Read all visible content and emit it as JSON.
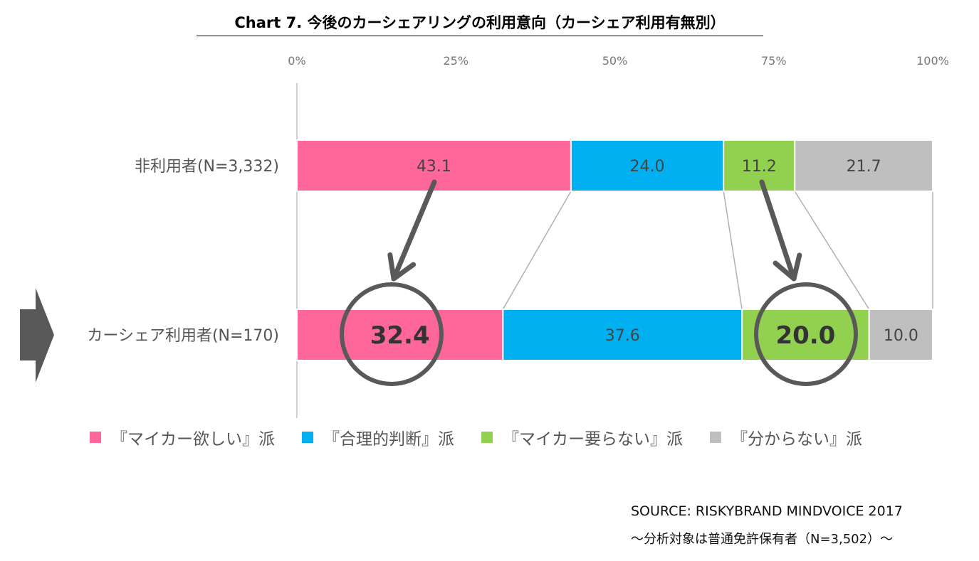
{
  "title": "Chart 7. 今後のカーシェアリングの利用意向（カーシェア利用有無別）",
  "chart_data": {
    "type": "bar",
    "stacked": true,
    "orientation": "horizontal",
    "percent": true,
    "xlim": [
      0,
      100
    ],
    "x_ticks": [
      "0%",
      "25%",
      "50%",
      "75%",
      "100%"
    ],
    "categories": [
      "非利用者(N=3,332)",
      "カーシェア利用者(N=170)"
    ],
    "series": [
      {
        "name": "『マイカー欲しい』派",
        "color": "#ff6699",
        "values": [
          43.1,
          32.4
        ],
        "labels": [
          "43.1",
          "32.4"
        ]
      },
      {
        "name": "『合理的判断』派",
        "color": "#00b0f0",
        "values": [
          24.0,
          37.6
        ],
        "labels": [
          "24.0",
          "37.6"
        ]
      },
      {
        "name": "『マイカー要らない』派",
        "color": "#92d050",
        "values": [
          11.2,
          20.0
        ],
        "labels": [
          "11.2",
          "20.0"
        ]
      },
      {
        "name": "『分からない』派",
        "color": "#bfbfbf",
        "values": [
          21.7,
          10.0
        ],
        "labels": [
          "21.7",
          "10.0"
        ]
      }
    ],
    "highlighted_values": [
      "32.4",
      "20.0"
    ],
    "legend_position": "bottom"
  },
  "source": "SOURCE: RISKYBRAND MINDVOICE 2017",
  "note": "～分析対象は普通免許保有者（N=3,502）～"
}
